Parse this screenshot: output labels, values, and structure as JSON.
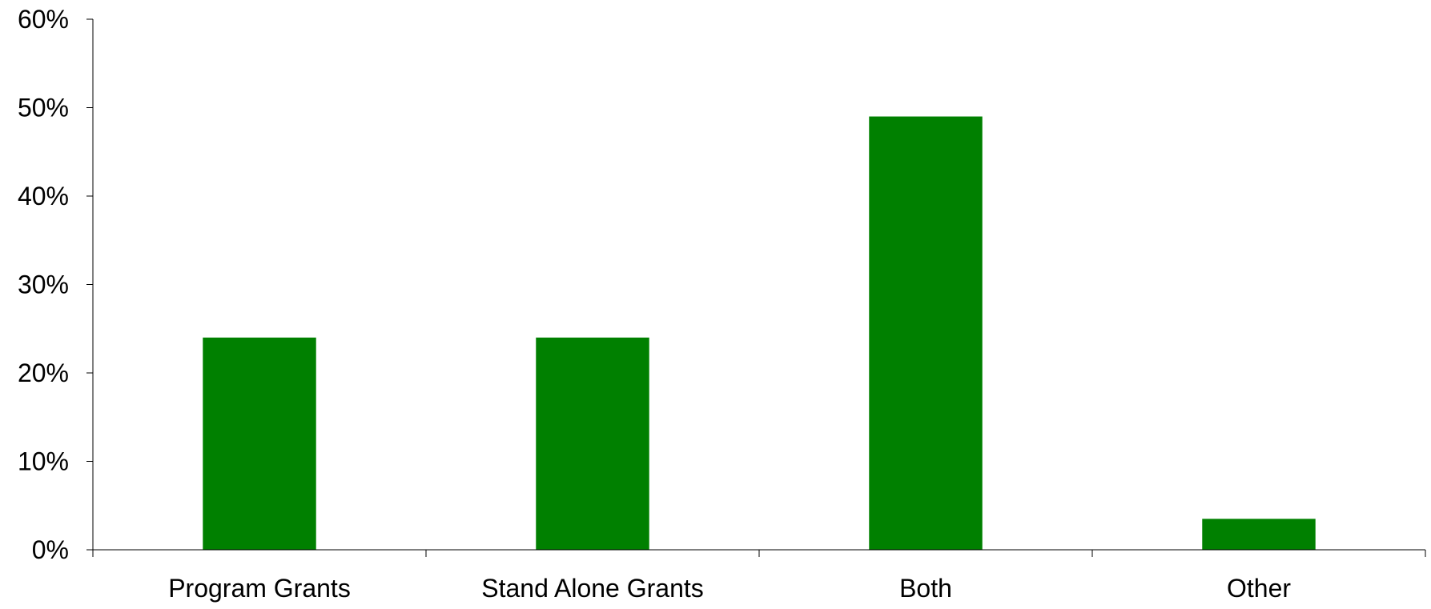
{
  "chart_data": {
    "type": "bar",
    "categories": [
      "Program Grants",
      "Stand Alone Grants",
      "Both",
      "Other"
    ],
    "values": [
      24,
      24,
      49,
      3.5
    ],
    "ylim": [
      0,
      60
    ],
    "yticks": [
      0,
      10,
      20,
      30,
      40,
      50,
      60
    ],
    "ytick_labels": [
      "0%",
      "10%",
      "20%",
      "30%",
      "40%",
      "50%",
      "60%"
    ],
    "bar_color": "#008000",
    "grid": false,
    "legend": "none"
  }
}
